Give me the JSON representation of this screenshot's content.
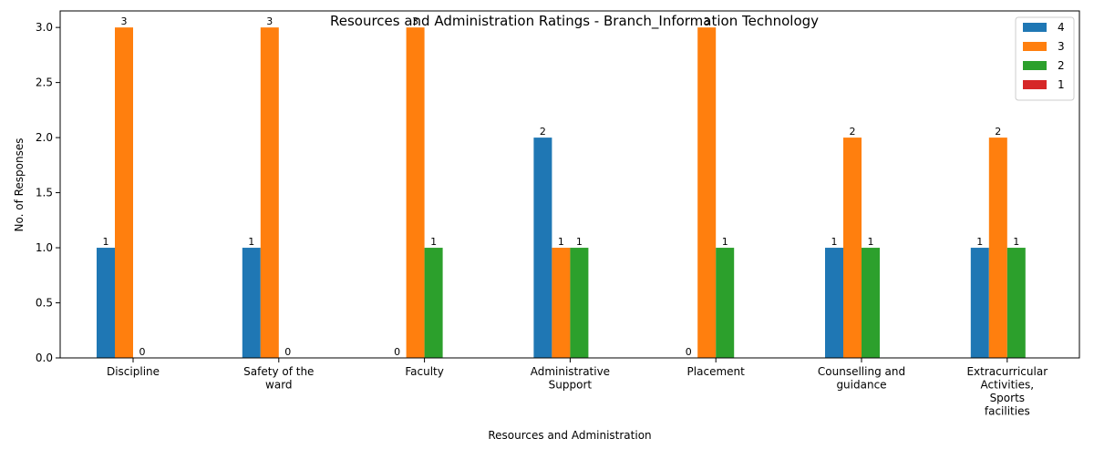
{
  "chart_data": {
    "type": "bar",
    "title": "Resources and Administration Ratings - Branch_Information Technology",
    "xlabel": "Resources and Administration",
    "ylabel": "No. of Responses",
    "ylim": [
      0,
      3.15
    ],
    "yticks": [
      "0.0",
      "0.5",
      "1.0",
      "1.5",
      "2.0",
      "2.5",
      "3.0"
    ],
    "grid": false,
    "legend_position": "top-right",
    "categories": [
      [
        "Discipline"
      ],
      [
        "Safety of the",
        "ward"
      ],
      [
        "Faculty"
      ],
      [
        "Administrative",
        "Support"
      ],
      [
        "Placement"
      ],
      [
        "Counselling and",
        "guidance"
      ],
      [
        "Extracurricular",
        "Activities,",
        "Sports",
        "facilities"
      ]
    ],
    "series": [
      {
        "name": "4",
        "color": "#1f77b4",
        "values": [
          1,
          1,
          0,
          2,
          0,
          1,
          1
        ]
      },
      {
        "name": "3",
        "color": "#ff7f0e",
        "values": [
          3,
          3,
          3,
          1,
          3,
          2,
          2
        ]
      },
      {
        "name": "2",
        "color": "#2ca02c",
        "values": [
          0,
          0,
          1,
          1,
          1,
          1,
          1
        ]
      },
      {
        "name": "1",
        "color": "#d62728",
        "values": [
          0,
          0,
          0,
          0,
          0,
          0,
          0
        ]
      }
    ]
  }
}
